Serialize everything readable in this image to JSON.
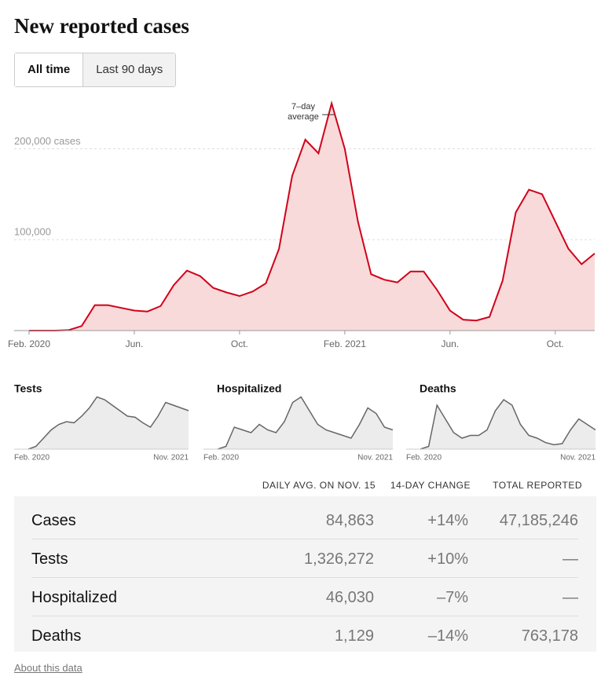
{
  "tabs": [
    "All time",
    "Last 90 days"
  ],
  "chart_data": [
    {
      "type": "area",
      "title": "New reported cases",
      "annotation": "7–day average",
      "color": "#d0021b",
      "fill": "#f9dada",
      "categories": [
        "Feb. 2020",
        null,
        null,
        null,
        null,
        null,
        null,
        null,
        "Jun.",
        null,
        null,
        null,
        null,
        null,
        null,
        null,
        "Oct.",
        null,
        null,
        null,
        null,
        null,
        null,
        null,
        "Feb. 2021",
        null,
        null,
        null,
        null,
        null,
        null,
        null,
        "Jun.",
        null,
        null,
        null,
        null,
        null,
        null,
        null,
        "Oct.",
        null,
        null,
        null
      ],
      "values": [
        0,
        0,
        0,
        500,
        5000,
        28000,
        28000,
        25000,
        22000,
        21000,
        27000,
        50000,
        66000,
        60000,
        47000,
        42000,
        38000,
        43000,
        52000,
        90000,
        170000,
        210000,
        195000,
        250000,
        200000,
        120000,
        62000,
        56000,
        53000,
        65000,
        65000,
        45000,
        22000,
        12000,
        11000,
        15000,
        55000,
        130000,
        155000,
        150000,
        120000,
        90000,
        73000,
        84863
      ],
      "ylim": [
        0,
        260000
      ],
      "yticks": [
        {
          "value": 100000,
          "label": "100,000"
        },
        {
          "value": 200000,
          "label": "200,000 cases"
        }
      ],
      "grid": true
    },
    {
      "type": "area",
      "title": "Tests",
      "color": "#666666",
      "fill": "#ececec",
      "categories": [
        "Feb. 2020",
        null,
        null,
        null,
        null,
        null,
        null,
        null,
        null,
        null,
        null,
        null,
        null,
        null,
        null,
        null,
        null,
        null,
        null,
        null,
        null,
        "Nov. 2021"
      ],
      "values": [
        0,
        5,
        20,
        35,
        45,
        50,
        48,
        60,
        75,
        95,
        90,
        80,
        70,
        60,
        58,
        48,
        40,
        60,
        85,
        80,
        75,
        70
      ],
      "ylim": [
        0,
        100
      ]
    },
    {
      "type": "area",
      "title": "Hospitalized",
      "color": "#666666",
      "fill": "#ececec",
      "categories": [
        "Feb. 2020",
        null,
        null,
        null,
        null,
        null,
        null,
        null,
        null,
        null,
        null,
        null,
        null,
        null,
        null,
        null,
        null,
        null,
        null,
        null,
        null,
        "Nov. 2021"
      ],
      "values": [
        0,
        5,
        40,
        35,
        30,
        45,
        35,
        30,
        50,
        85,
        95,
        70,
        45,
        35,
        30,
        25,
        20,
        45,
        75,
        65,
        40,
        35
      ],
      "ylim": [
        0,
        100
      ]
    },
    {
      "type": "area",
      "title": "Deaths",
      "color": "#666666",
      "fill": "#ececec",
      "categories": [
        "Feb. 2020",
        null,
        null,
        null,
        null,
        null,
        null,
        null,
        null,
        null,
        null,
        null,
        null,
        null,
        null,
        null,
        null,
        null,
        null,
        null,
        null,
        "Nov. 2021"
      ],
      "values": [
        0,
        5,
        80,
        55,
        30,
        20,
        25,
        25,
        35,
        70,
        90,
        80,
        45,
        25,
        20,
        12,
        8,
        10,
        35,
        55,
        45,
        35
      ],
      "ylim": [
        0,
        100
      ]
    }
  ],
  "table": {
    "header": [
      "DAILY AVG. ON NOV. 15",
      "14-DAY CHANGE",
      "TOTAL REPORTED"
    ],
    "rows": [
      [
        "Cases",
        "84,863",
        "+14%",
        "47,185,246"
      ],
      [
        "Tests",
        "1,326,272",
        "+10%",
        "—"
      ],
      [
        "Hospitalized",
        "46,030",
        "–7%",
        "—"
      ],
      [
        "Deaths",
        "1,129",
        "–14%",
        "763,178"
      ]
    ]
  },
  "footer": "About this data"
}
